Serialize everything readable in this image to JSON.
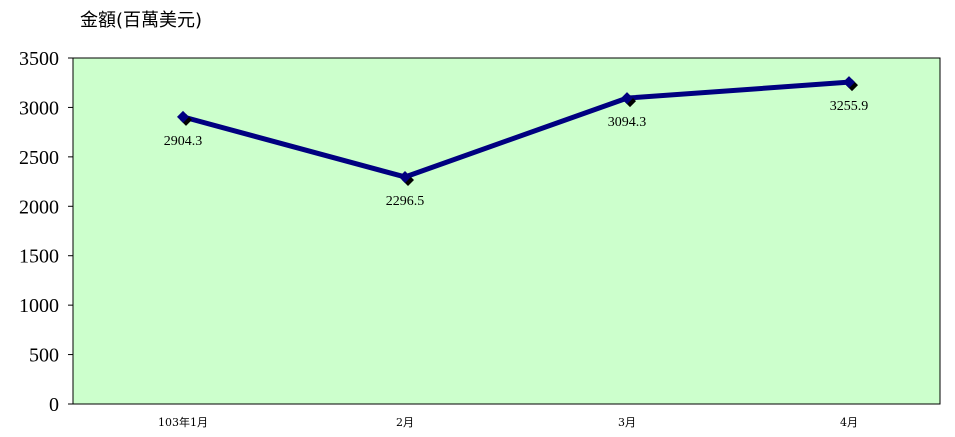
{
  "chart_data": {
    "type": "line",
    "title": "",
    "ylabel": "金額(百萬美元)",
    "xlabel": "",
    "categories": [
      "103年1月",
      "2月",
      "3月",
      "4月"
    ],
    "series": [
      {
        "values": [
          2904.3,
          2296.5,
          3094.3,
          3255.9
        ]
      }
    ],
    "data_labels": [
      "2904.3",
      "2296.5",
      "3094.3",
      "3255.9"
    ],
    "ylim": [
      0,
      3500
    ],
    "yticks": [
      0,
      500,
      1000,
      1500,
      2000,
      2500,
      3000,
      3500
    ],
    "grid": false,
    "legend": "none",
    "colors": {
      "plot_background": "#ccffcc",
      "line": "#000080",
      "marker": "#000000",
      "axis": "#000000"
    }
  }
}
